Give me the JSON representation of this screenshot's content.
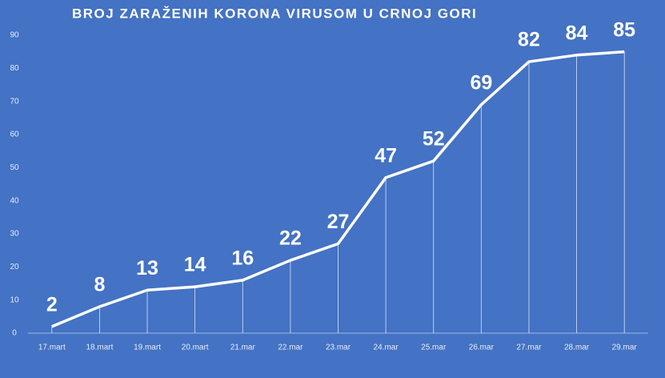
{
  "chart_data": {
    "type": "line",
    "title": "BROJ ZARAŽENIH KORONA VIRUSOM U CRNOJ GORI",
    "categories": [
      "17.mart",
      "18.mart",
      "19.mart",
      "20.mart",
      "21.mar",
      "22.mar",
      "23.mar",
      "24.mar",
      "25.mar",
      "26.mar",
      "27.mar",
      "28.mar",
      "29.mar"
    ],
    "values": [
      2,
      8,
      13,
      14,
      16,
      22,
      27,
      47,
      52,
      69,
      82,
      84,
      85
    ],
    "color": "#ffffff",
    "background": "#4472c4",
    "ylim": [
      0,
      90
    ],
    "yticks": [
      0,
      10,
      20,
      30,
      40,
      50,
      60,
      70,
      80,
      90
    ],
    "grid": false,
    "drop_lines": true,
    "data_labels": true
  }
}
